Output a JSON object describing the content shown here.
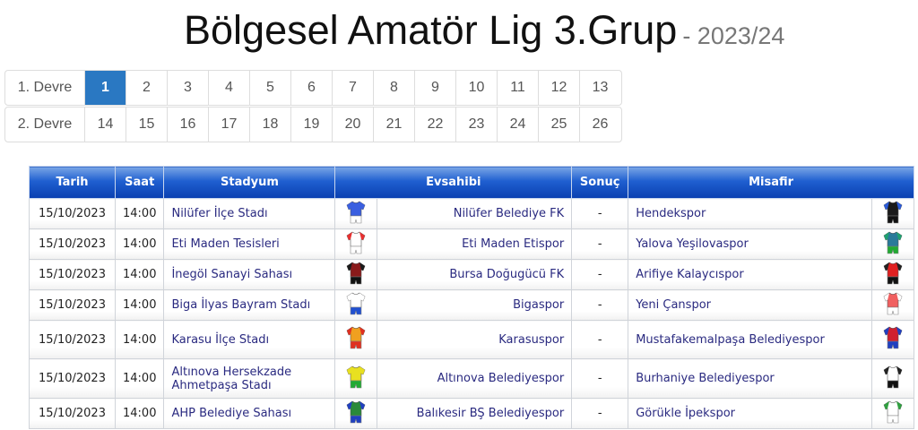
{
  "title": {
    "main": "Bölgesel Amatör Lig 3.Grup",
    "season": "- 2023/24"
  },
  "pager": {
    "rows": [
      {
        "label": "1. Devre",
        "weeks": [
          "1",
          "2",
          "3",
          "4",
          "5",
          "6",
          "7",
          "8",
          "9",
          "10",
          "11",
          "12",
          "13"
        ]
      },
      {
        "label": "2. Devre",
        "weeks": [
          "14",
          "15",
          "16",
          "17",
          "18",
          "19",
          "20",
          "21",
          "22",
          "23",
          "24",
          "25",
          "26"
        ]
      }
    ],
    "active": "1",
    "active_color": "#2a78c2"
  },
  "table": {
    "headers": {
      "date": "Tarih",
      "time": "Saat",
      "stadium": "Stadyum",
      "home": "Evsahibi",
      "score": "Sonuç",
      "away": "Misafir"
    },
    "rows": [
      {
        "date": "15/10/2023",
        "time": "14:00",
        "stadium": "Nilüfer İlçe Stadı",
        "home": "Nilüfer Belediye FK",
        "score": "-",
        "away": "Hendekspor",
        "home_kit": [
          "#3a5fe0",
          "#3a5fe0",
          "#ffffff"
        ],
        "away_kit": [
          "#1a1a1a",
          "#2b5bd8",
          "#111111"
        ]
      },
      {
        "date": "15/10/2023",
        "time": "14:00",
        "stadium": "Eti Maden Tesisleri",
        "home": "Eti Maden Etispor",
        "score": "-",
        "away": "Yalova Yeşilovaspor",
        "home_kit": [
          "#ffffff",
          "#e83030",
          "#ffffff"
        ],
        "away_kit": [
          "#2a7a9a",
          "#1fa070",
          "#22aa33"
        ]
      },
      {
        "date": "15/10/2023",
        "time": "14:00",
        "stadium": "İnegöl Sanayi Sahası",
        "home": "Bursa Doğugücü FK",
        "score": "-",
        "away": "Arifiye Kalaycıspor",
        "home_kit": [
          "#8a1a1a",
          "#1a1a1a",
          "#111111"
        ],
        "away_kit": [
          "#e02020",
          "#222222",
          "#111111"
        ]
      },
      {
        "date": "15/10/2023",
        "time": "14:00",
        "stadium": "Biga İlyas Bayram Stadı",
        "home": "Bigaspor",
        "score": "-",
        "away": "Yeni Çanspor",
        "home_kit": [
          "#ffffff",
          "#ffffff",
          "#2050d0"
        ],
        "away_kit": [
          "#f06060",
          "#ffffff",
          "#ffffff"
        ]
      },
      {
        "date": "15/10/2023",
        "time": "14:00",
        "stadium": "Karasu İlçe Stadı",
        "home": "Karasuspor",
        "score": "-",
        "away": "Mustafakemalpaşa Belediyespor",
        "home_kit": [
          "#f0a020",
          "#e03020",
          "#e03020"
        ],
        "away_kit": [
          "#d02030",
          "#2040c0",
          "#2040c0"
        ]
      },
      {
        "date": "15/10/2023",
        "time": "14:00",
        "stadium": "Altınova Hersekzade Ahmetpaşa Stadı",
        "home": "Altınova Belediyespor",
        "score": "-",
        "away": "Burhaniye Belediyespor",
        "home_kit": [
          "#e8e020",
          "#e8e020",
          "#22aa33"
        ],
        "away_kit": [
          "#ffffff",
          "#222222",
          "#111111"
        ]
      },
      {
        "date": "15/10/2023",
        "time": "14:00",
        "stadium": "AHP Belediye Sahası",
        "home": "Balıkesir BŞ Belediyespor",
        "score": "-",
        "away": "Görükle İpekspor",
        "home_kit": [
          "#2a8a3a",
          "#2040c0",
          "#2040c0"
        ],
        "away_kit": [
          "#ffffff",
          "#30a040",
          "#ffffff"
        ]
      }
    ]
  }
}
